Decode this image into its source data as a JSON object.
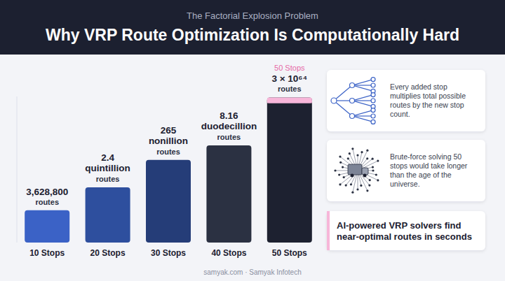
{
  "chart_data": {
    "type": "bar",
    "subtitle": "The Factorial Explosion Problem",
    "title": "Why VRP Route Optimization Is Computationally Hard",
    "categories": [
      "10 Stops",
      "20 Stops",
      "30 Stops",
      "40 Stops",
      "50 Stops"
    ],
    "values": [
      3628800,
      2.4e+18,
      2.65e+32,
      8.16e+39,
      3e+64
    ],
    "value_labels": [
      "3,628,800",
      "2.4 quintillion",
      "265 nonillion",
      "8.16 duodecillion",
      "3 × 10⁶⁴"
    ],
    "value_unit_label": "routes",
    "highlight_label": "50 Stops",
    "colors": [
      "#3b62c6",
      "#2e4f9e",
      "#253d78",
      "#2b3142",
      "#1d2130"
    ],
    "log": "y",
    "ylim": [
      1e-10,
      1e+65
    ],
    "data_labels": true,
    "tick_labels": "x",
    "grid": false
  },
  "notes": [
    "Every added stop multiplies total possible routes by the new stop count.",
    "Brute-force solving 50 stops would take longer than the age of the universe."
  ],
  "callout": "AI-powered VRP solvers find near-optimal routes in seconds",
  "footer": "samyak.com · Samyak Infotech"
}
